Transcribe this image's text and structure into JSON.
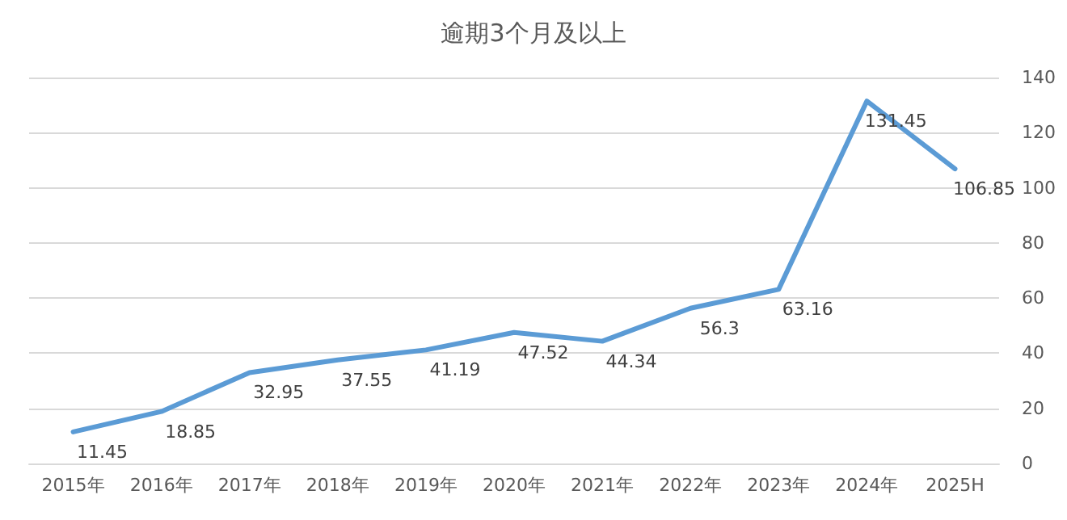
{
  "chart_data": {
    "type": "line",
    "title": "逾期3个月及以上",
    "categories": [
      "2015年",
      "2016年",
      "2017年",
      "2018年",
      "2019年",
      "2020年",
      "2021年",
      "2022年",
      "2023年",
      "2024年",
      "2025H"
    ],
    "series": [
      {
        "color": "#5b9bd5",
        "values": [
          11.45,
          18.85,
          32.95,
          37.55,
          41.19,
          47.52,
          44.34,
          56.3,
          63.16,
          131.45,
          106.85
        ]
      }
    ],
    "ylim": [
      0,
      140
    ],
    "yticks": [
      0,
      20,
      40,
      60,
      80,
      100,
      120,
      140
    ],
    "grid": "y",
    "data_labels": true,
    "marker": "none",
    "line_style": "solid"
  }
}
